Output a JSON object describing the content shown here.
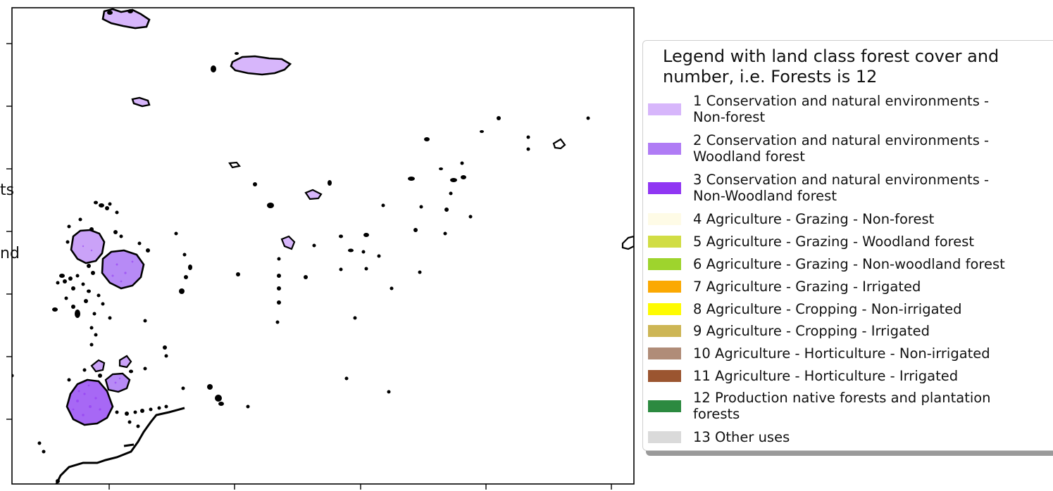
{
  "side_labels": [
    "ts",
    "nd"
  ],
  "legend": {
    "title": "Legend with land class forest cover and number, i.e. Forests is 12",
    "items": [
      {
        "label": "1 Conservation and natural environments -\nNon-forest",
        "color": "#d7b6fb"
      },
      {
        "label": "2 Conservation and natural environments -\nWoodland forest",
        "color": "#b07cf5"
      },
      {
        "label": "3 Conservation and natural environments -\nNon-Woodland forest",
        "color": "#9036f3"
      },
      {
        "label": "4 Agriculture - Grazing - Non-forest",
        "color": "#fefbe6"
      },
      {
        "label": "5 Agriculture - Grazing - Woodland forest",
        "color": "#d1dd44"
      },
      {
        "label": "6 Agriculture - Grazing - Non-woodland forest",
        "color": "#9ed42d"
      },
      {
        "label": "7 Agriculture - Grazing - Irrigated",
        "color": "#fba902"
      },
      {
        "label": "8 Agriculture - Cropping - Non-irrigated",
        "color": "#fefb02"
      },
      {
        "label": "9 Agriculture - Cropping - Irrigated",
        "color": "#cdb655"
      },
      {
        "label": "10 Agriculture - Horticulture - Non-irrigated",
        "color": "#b08c78"
      },
      {
        "label": "11 Agriculture - Horticulture - Irrigated",
        "color": "#9b5530"
      },
      {
        "label": "12 Production native forests and plantation\nforests",
        "color": "#2c8a40"
      },
      {
        "label": "13 Other uses",
        "color": "#dadada"
      }
    ]
  },
  "map": {
    "outline_color": "#000000"
  }
}
